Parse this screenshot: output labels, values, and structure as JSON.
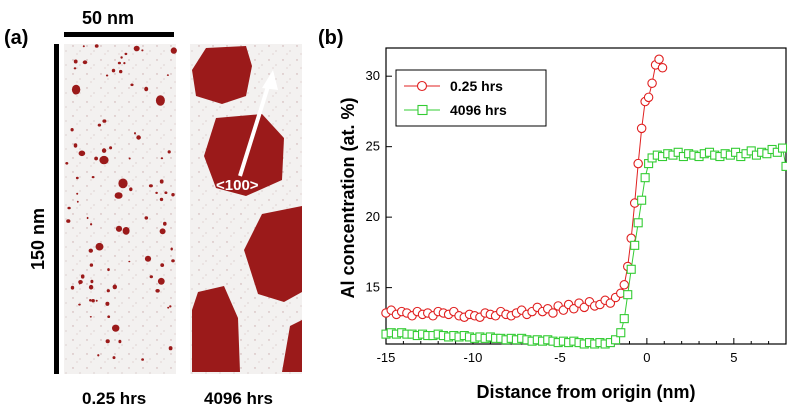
{
  "panel_a": {
    "label": "(a)",
    "scale_bar_horizontal": "50 nm",
    "scale_bar_vertical": "150 nm",
    "arrow_label": "<100>",
    "captions": [
      "0.25 hrs",
      "4096 hrs"
    ],
    "colors": {
      "precipitate": "#9b1a1a",
      "matrix": "#f3f1f0"
    }
  },
  "panel_b": {
    "label": "(b)"
  },
  "chart_data": {
    "type": "scatter",
    "title": "",
    "xlabel": "Distance from origin (nm)",
    "ylabel": "Al concentration (at. %)",
    "xlim": [
      -15,
      8
    ],
    "ylim": [
      11,
      32
    ],
    "xticks": [
      -15,
      -10,
      -5,
      0,
      5
    ],
    "yticks": [
      15,
      20,
      25,
      30
    ],
    "grid": false,
    "legend": "top-left",
    "series": [
      {
        "name": "0.25 hrs",
        "marker": "circle",
        "color": "#e02020",
        "x": [
          -15.0,
          -14.7,
          -14.4,
          -14.1,
          -13.8,
          -13.5,
          -13.2,
          -12.9,
          -12.6,
          -12.3,
          -12.0,
          -11.7,
          -11.4,
          -11.1,
          -10.8,
          -10.5,
          -10.2,
          -9.9,
          -9.6,
          -9.3,
          -9.0,
          -8.7,
          -8.4,
          -8.1,
          -7.8,
          -7.5,
          -7.2,
          -6.9,
          -6.6,
          -6.3,
          -6.0,
          -5.7,
          -5.4,
          -5.1,
          -4.8,
          -4.5,
          -4.2,
          -3.9,
          -3.6,
          -3.3,
          -3.0,
          -2.7,
          -2.4,
          -2.1,
          -1.8,
          -1.5,
          -1.3,
          -1.1,
          -0.9,
          -0.7,
          -0.5,
          -0.3,
          -0.1,
          0.1,
          0.3,
          0.5,
          0.7,
          0.9
        ],
        "y": [
          13.2,
          13.4,
          13.1,
          13.3,
          13.2,
          13.0,
          13.3,
          13.1,
          13.2,
          13.0,
          13.3,
          13.2,
          13.1,
          13.3,
          13.0,
          12.9,
          13.1,
          13.0,
          12.9,
          13.2,
          13.1,
          13.0,
          13.3,
          13.1,
          13.0,
          13.2,
          13.4,
          13.1,
          13.3,
          13.6,
          13.3,
          13.5,
          13.2,
          13.7,
          13.4,
          13.8,
          13.5,
          13.9,
          13.6,
          14.0,
          13.7,
          13.8,
          14.1,
          13.9,
          14.3,
          14.6,
          15.2,
          16.5,
          18.5,
          21.0,
          23.8,
          26.3,
          28.2,
          28.5,
          29.5,
          30.8,
          31.2,
          30.6
        ]
      },
      {
        "name": "4096 hrs",
        "marker": "square",
        "color": "#33cc33",
        "x": [
          -15.0,
          -14.7,
          -14.4,
          -14.1,
          -13.8,
          -13.5,
          -13.2,
          -12.9,
          -12.6,
          -12.3,
          -12.0,
          -11.7,
          -11.4,
          -11.1,
          -10.8,
          -10.5,
          -10.2,
          -9.9,
          -9.6,
          -9.3,
          -9.0,
          -8.7,
          -8.4,
          -8.1,
          -7.8,
          -7.5,
          -7.2,
          -6.9,
          -6.6,
          -6.3,
          -6.0,
          -5.7,
          -5.4,
          -5.1,
          -4.8,
          -4.5,
          -4.2,
          -3.9,
          -3.6,
          -3.3,
          -3.0,
          -2.7,
          -2.4,
          -2.1,
          -1.8,
          -1.5,
          -1.3,
          -1.1,
          -0.9,
          -0.7,
          -0.5,
          -0.3,
          -0.1,
          0.1,
          0.3,
          0.6,
          0.9,
          1.2,
          1.5,
          1.8,
          2.1,
          2.4,
          2.7,
          3.0,
          3.3,
          3.6,
          3.9,
          4.2,
          4.5,
          4.8,
          5.1,
          5.4,
          5.7,
          6.0,
          6.3,
          6.6,
          6.9,
          7.2,
          7.5,
          7.8,
          8.0
        ],
        "y": [
          11.7,
          11.8,
          11.7,
          11.8,
          11.7,
          11.7,
          11.6,
          11.7,
          11.6,
          11.6,
          11.7,
          11.6,
          11.5,
          11.6,
          11.5,
          11.6,
          11.5,
          11.4,
          11.5,
          11.4,
          11.5,
          11.4,
          11.4,
          11.3,
          11.4,
          11.3,
          11.4,
          11.3,
          11.2,
          11.3,
          11.2,
          11.3,
          11.2,
          11.1,
          11.2,
          11.1,
          11.2,
          11.1,
          11.0,
          11.1,
          11.0,
          11.1,
          11.0,
          11.1,
          11.3,
          11.8,
          12.8,
          14.5,
          16.3,
          18.0,
          19.6,
          21.2,
          22.8,
          23.8,
          24.2,
          24.4,
          24.3,
          24.5,
          24.4,
          24.6,
          24.3,
          24.5,
          24.4,
          24.3,
          24.5,
          24.6,
          24.4,
          24.3,
          24.5,
          24.4,
          24.6,
          24.3,
          24.5,
          24.7,
          24.4,
          24.6,
          24.5,
          24.8,
          24.6,
          24.9,
          23.6
        ]
      }
    ]
  }
}
